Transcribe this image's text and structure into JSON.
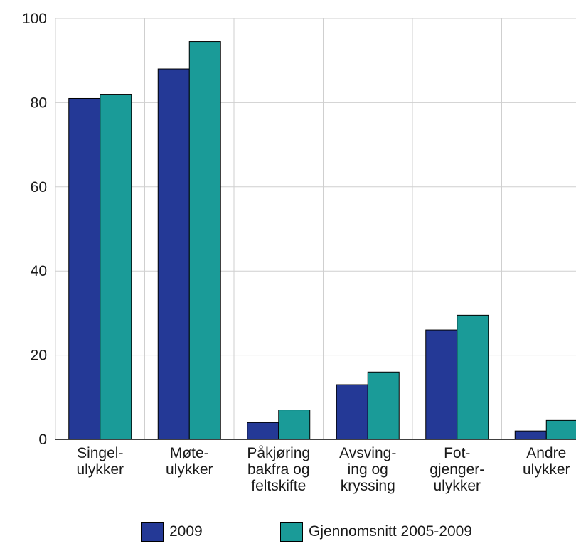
{
  "chart_data": {
    "type": "bar",
    "categories": [
      [
        "Singel-",
        "ulykker"
      ],
      [
        "Møte-",
        "ulykker"
      ],
      [
        "Påkjøring",
        "bakfra og",
        "feltskifte"
      ],
      [
        "Avsving-",
        "ing og",
        "kryssing"
      ],
      [
        "Fot-",
        "gjenger-",
        "ulykker"
      ],
      [
        "Andre",
        "ulykker"
      ]
    ],
    "series": [
      {
        "name": "2009",
        "values": [
          81,
          88,
          4,
          13,
          26,
          2
        ],
        "color": "#243996"
      },
      {
        "name": "Gjennomsnitt 2005-2009",
        "values": [
          82,
          94.5,
          7,
          16,
          29.5,
          4.5
        ],
        "color": "#1a9b98"
      }
    ],
    "ylim": [
      0,
      100
    ],
    "yticks": [
      "0",
      "20",
      "40",
      "60",
      "80",
      "100"
    ],
    "grid": true,
    "legend_position": "bottom"
  }
}
